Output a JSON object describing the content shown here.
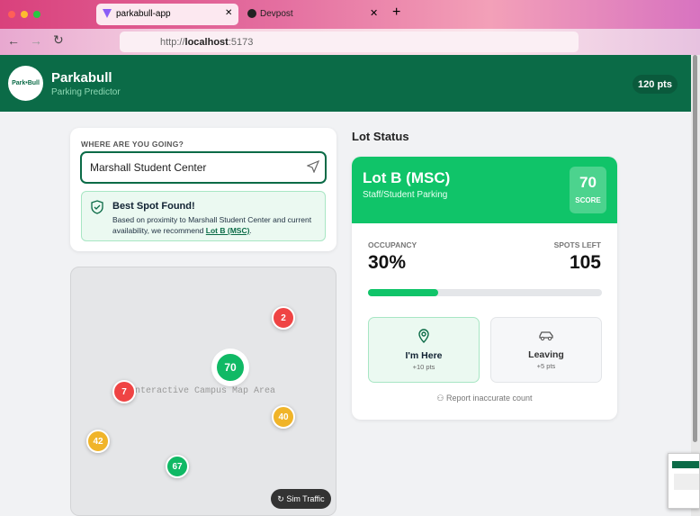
{
  "browser": {
    "tabs": [
      "parkabull-app",
      "Devpost"
    ],
    "url": {
      "scheme": "http://",
      "host": "localhost",
      "port": ":5173"
    }
  },
  "header": {
    "logo": "Park•Bull",
    "title": "Parkabull",
    "subtitle": "Parking Predictor",
    "points": "120 pts"
  },
  "search": {
    "label": "WHERE ARE YOU GOING?",
    "input": "Marshall Student Center",
    "result_title": "Best Spot Found!",
    "result_text": "Based on proximity to Marshall Student Center and current availability, we recommend ",
    "result_link": "Lot B (MSC)",
    "result_end": "."
  },
  "map": {
    "placeholder": "Interactive Campus Map Area",
    "button": "Sim Traffic",
    "markers": [
      {
        "value": 2,
        "color": "#ef4444"
      },
      {
        "value": 70,
        "color": "#10b965"
      },
      {
        "value": 7,
        "color": "#ef4444"
      },
      {
        "value": 40,
        "color": "#f0b429"
      },
      {
        "value": 42,
        "color": "#f0b429"
      },
      {
        "value": 67,
        "color": "#10b965"
      }
    ]
  },
  "lot": {
    "heading": "Lot Status",
    "name": "Lot B (MSC)",
    "type": "Staff/Student Parking",
    "score": 70,
    "score_label": "SCORE",
    "occupancy_label": "OCCUPANCY",
    "occupancy": {
      "value": 30,
      "label": "30%"
    },
    "spots_label": "SPOTS LEFT",
    "spots": 105,
    "here": "I'm Here",
    "here_pts": "+10 pts",
    "leaving": "Leaving",
    "leaving_pts": "+5 pts",
    "report": "Report inaccurate count"
  }
}
